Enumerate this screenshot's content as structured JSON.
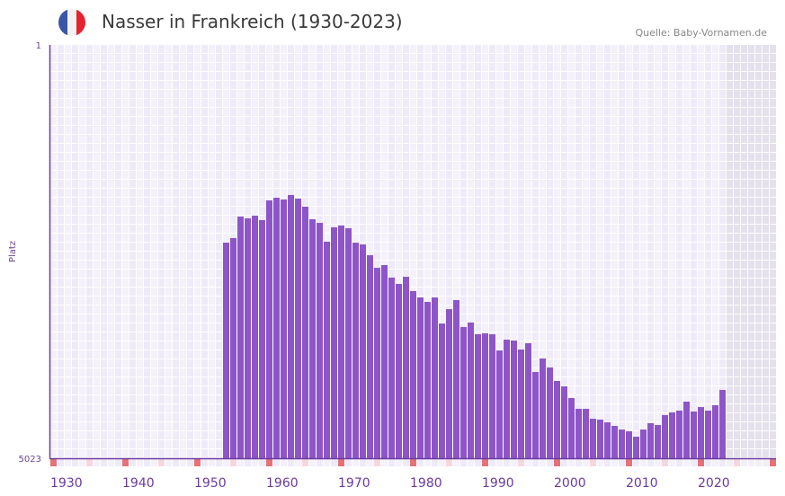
{
  "header": {
    "title": "Nasser in Frankreich (1930-2023)",
    "source": "Quelle: Baby-Vornamen.de"
  },
  "colors": {
    "bar": "#8e55c8",
    "axis": "#6a3aa0",
    "decade_marker": "#e57279",
    "half_marker": "#f5d7de",
    "future": "#e4e0ec",
    "flag_blue": "#3a56a8",
    "flag_white": "#f2f2f2",
    "flag_red": "#e5232e"
  },
  "chart_data": {
    "type": "bar",
    "title": "Nasser in Frankreich (1930-2023)",
    "ylabel": "Platz",
    "xlabel": "",
    "ylim": [
      5023,
      1
    ],
    "y_ticks": [
      "1",
      "5023"
    ],
    "x_range": [
      1930,
      2030
    ],
    "x_ticks": [
      "1930",
      "1940",
      "1950",
      "1960",
      "1970",
      "1980",
      "1990",
      "2000",
      "2010",
      "2020"
    ],
    "future_from": 2024,
    "years": [
      1954,
      1955,
      1956,
      1957,
      1958,
      1959,
      1960,
      1961,
      1962,
      1963,
      1964,
      1965,
      1966,
      1967,
      1968,
      1969,
      1970,
      1971,
      1972,
      1973,
      1974,
      1975,
      1976,
      1977,
      1978,
      1979,
      1980,
      1981,
      1982,
      1983,
      1984,
      1985,
      1986,
      1987,
      1988,
      1989,
      1990,
      1991,
      1992,
      1993,
      1994,
      1995,
      1996,
      1997,
      1998,
      1999,
      2000,
      2001,
      2002,
      2003,
      2004,
      2005,
      2006,
      2007,
      2008,
      2009,
      2010,
      2011,
      2012,
      2013,
      2014,
      2015,
      2016,
      2017,
      2018,
      2019,
      2020,
      2021,
      2022,
      2023
    ],
    "values": [
      2403,
      2348,
      2086,
      2108,
      2075,
      2130,
      1890,
      1857,
      1879,
      1824,
      1868,
      1966,
      2119,
      2163,
      2392,
      2217,
      2195,
      2228,
      2403,
      2425,
      2556,
      2709,
      2676,
      2828,
      2905,
      2818,
      2992,
      3069,
      3123,
      3069,
      3385,
      3211,
      3101,
      3429,
      3374,
      3516,
      3505,
      3516,
      3713,
      3582,
      3593,
      3702,
      3625,
      3975,
      3811,
      3920,
      4084,
      4149,
      4291,
      4422,
      4422,
      4543,
      4553,
      4586,
      4630,
      4674,
      4695,
      4761,
      4674,
      4597,
      4619,
      4499,
      4466,
      4444,
      4335,
      4455,
      4401,
      4444,
      4379,
      4193
    ]
  }
}
